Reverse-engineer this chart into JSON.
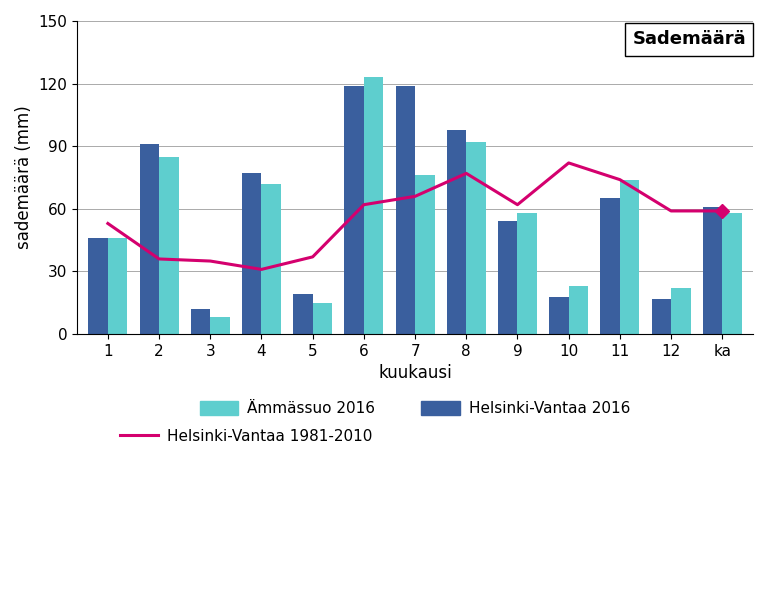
{
  "categories": [
    "1",
    "2",
    "3",
    "4",
    "5",
    "6",
    "7",
    "8",
    "9",
    "10",
    "11",
    "12",
    "ka"
  ],
  "ammassuo_2016": [
    46,
    85,
    8,
    72,
    15,
    123,
    76,
    92,
    58,
    23,
    74,
    22,
    58
  ],
  "helsinki_vantaa_2016": [
    46,
    91,
    12,
    77,
    19,
    119,
    119,
    98,
    54,
    18,
    65,
    17,
    61
  ],
  "norm_all": [
    53,
    36,
    35,
    31,
    37,
    62,
    66,
    77,
    62,
    82,
    74,
    59,
    59
  ],
  "bar_color_ammassuo": "#5ecece",
  "bar_color_helsinki": "#3a5f9e",
  "line_color": "#d4006e",
  "title": "Sademäärä",
  "ylabel": "sademäärä (mm)",
  "xlabel": "kuukausi",
  "ylim": [
    0,
    150
  ],
  "yticks": [
    0,
    30,
    60,
    90,
    120,
    150
  ],
  "legend_ammassuo": "Ämmässuo 2016",
  "legend_helsinki_vantaa": "Helsinki-Vantaa 2016",
  "legend_norm": "Helsinki-Vantaa 1981-2010",
  "background_color": "#ffffff"
}
